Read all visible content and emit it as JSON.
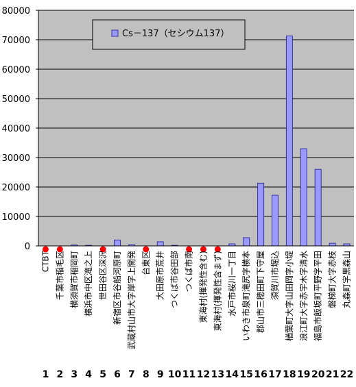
{
  "chart_data": {
    "type": "bar",
    "title": "",
    "xlabel": "",
    "ylabel": "",
    "ylim": [
      0,
      80000
    ],
    "ytick_step": 10000,
    "grid": "horizontal",
    "legend_position": "top-left",
    "colors": {
      "plot_bg": "#c0c0c0",
      "bar_fill": "#9999ff",
      "bar_stroke": "#333399",
      "marker": "#ff0000"
    },
    "categories": [
      "CTBT",
      "千葉市稲毛区",
      "横須賀市稲岡町",
      "横浜市中区滝之上",
      "世田谷区深沢",
      "新宿区市谷船河原町",
      "武蔵村山市大字岸字上開発",
      "台東区",
      "大田原市荒井",
      "つくば市谷田部",
      "つくば市南",
      "東海村(揮発性含む)",
      "東海村(揮発性含まず)",
      "水戸市桜川一丁目",
      "いわき市泉町滝尻字横本",
      "郡山市三穂田町下守屋",
      "須賀川市堀込",
      "楢葉町大字山田岡字小堤",
      "浪江町大字赤宇木字清水",
      "福島市飯坂町平野字平田",
      "磐梯町大字赤枝",
      "丸森町字黒森山"
    ],
    "numbers": [
      "1",
      "2",
      "3",
      "4",
      "5",
      "6",
      "7",
      "8",
      "9",
      "10",
      "11",
      "12",
      "13",
      "14",
      "15",
      "16",
      "17",
      "18",
      "19",
      "20",
      "21",
      "22"
    ],
    "marked": [
      true,
      true,
      false,
      false,
      true,
      false,
      false,
      true,
      false,
      false,
      true,
      true,
      true,
      false,
      false,
      false,
      false,
      false,
      false,
      false,
      false,
      false
    ],
    "series": [
      {
        "name": "Cs－137（セシウム137）",
        "values": [
          0,
          0,
          300,
          200,
          0,
          2000,
          400,
          0,
          1400,
          200,
          0,
          0,
          0,
          700,
          2800,
          21300,
          17200,
          71300,
          33000,
          26000,
          900,
          700
        ]
      }
    ]
  }
}
